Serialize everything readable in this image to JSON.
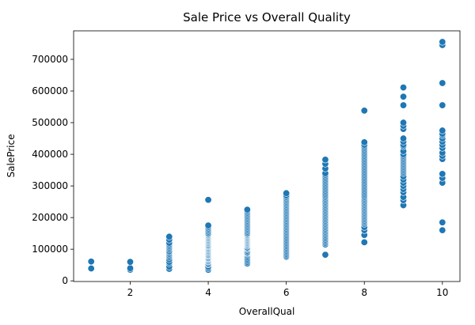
{
  "chart_data": {
    "type": "scatter",
    "title": "Sale Price vs Overall Quality",
    "xlabel": "OverallQual",
    "ylabel": "SalePrice",
    "xlim": [
      0.55,
      10.45
    ],
    "ylim": [
      -2000,
      790000
    ],
    "xticks": [
      2,
      4,
      6,
      8,
      10
    ],
    "yticks": [
      0,
      100000,
      200000,
      300000,
      400000,
      500000,
      600000,
      700000
    ],
    "grid": false,
    "marker_color": "#1f77b4",
    "marker_edge": "#ffffff",
    "points": [
      {
        "x": 1,
        "y": [
          39300,
          61000
        ]
      },
      {
        "x": 2,
        "y": [
          35311,
          40000,
          60000
        ]
      },
      {
        "x": 3,
        "y": [
          37900,
          45000,
          55000,
          60000,
          68000,
          75000,
          80000,
          85000,
          90000,
          94000,
          100000,
          105000,
          110000,
          115000,
          120000,
          130000,
          139600
        ]
      },
      {
        "x": 4,
        "y": [
          34900,
          40000,
          45000,
          52000,
          55000,
          60000,
          62000,
          65000,
          68000,
          70000,
          72000,
          75000,
          78000,
          80000,
          82000,
          85000,
          88000,
          90000,
          93000,
          95000,
          98000,
          100000,
          103000,
          105000,
          108000,
          110000,
          112000,
          115000,
          118000,
          120000,
          123000,
          125000,
          128000,
          130000,
          133000,
          135000,
          138000,
          140000,
          143000,
          145000,
          148000,
          150000,
          155000,
          160000,
          165000,
          170000,
          175000,
          256000
        ]
      },
      {
        "x": 5,
        "y": [
          55000,
          60000,
          65000,
          70000,
          75000,
          80000,
          85000,
          88000,
          90000,
          95000,
          100000,
          103000,
          105000,
          110000,
          113000,
          115000,
          118000,
          120000,
          123000,
          125000,
          128000,
          130000,
          133000,
          135000,
          138000,
          140000,
          143000,
          145000,
          148000,
          150000,
          155000,
          160000,
          165000,
          170000,
          175000,
          180000,
          185000,
          190000,
          195000,
          200000,
          205000,
          210000,
          215000,
          220000,
          225000
        ]
      },
      {
        "x": 6,
        "y": [
          76000,
          80000,
          85000,
          90000,
          95000,
          100000,
          105000,
          110000,
          115000,
          120000,
          125000,
          130000,
          135000,
          140000,
          145000,
          150000,
          155000,
          160000,
          165000,
          170000,
          175000,
          180000,
          185000,
          190000,
          195000,
          200000,
          205000,
          210000,
          215000,
          220000,
          225000,
          230000,
          235000,
          240000,
          245000,
          250000,
          255000,
          260000,
          265000,
          270000,
          277000
        ]
      },
      {
        "x": 7,
        "y": [
          82500,
          115000,
          120000,
          125000,
          130000,
          135000,
          140000,
          145000,
          150000,
          155000,
          160000,
          165000,
          170000,
          175000,
          180000,
          185000,
          190000,
          195000,
          200000,
          205000,
          210000,
          215000,
          220000,
          225000,
          230000,
          235000,
          240000,
          245000,
          250000,
          255000,
          260000,
          265000,
          270000,
          275000,
          280000,
          285000,
          290000,
          295000,
          300000,
          305000,
          310000,
          315000,
          320000,
          325000,
          330000,
          335000,
          340000,
          355000,
          370000,
          383000
        ]
      },
      {
        "x": 8,
        "y": [
          122000,
          145000,
          160000,
          170000,
          180000,
          185000,
          190000,
          195000,
          200000,
          205000,
          210000,
          215000,
          220000,
          225000,
          230000,
          235000,
          240000,
          245000,
          250000,
          255000,
          260000,
          265000,
          270000,
          275000,
          280000,
          285000,
          290000,
          295000,
          300000,
          305000,
          310000,
          315000,
          320000,
          325000,
          330000,
          335000,
          340000,
          345000,
          350000,
          355000,
          360000,
          365000,
          370000,
          375000,
          380000,
          385000,
          390000,
          395000,
          400000,
          405000,
          410000,
          415000,
          420000,
          425000,
          430000,
          438000,
          538000
        ]
      },
      {
        "x": 9,
        "y": [
          239000,
          255000,
          265000,
          280000,
          290000,
          300000,
          310000,
          320000,
          330000,
          340000,
          345000,
          350000,
          355000,
          360000,
          365000,
          370000,
          375000,
          380000,
          385000,
          390000,
          395000,
          400000,
          410000,
          425000,
          430000,
          440000,
          450000,
          480000,
          490000,
          500000,
          555000,
          582000,
          611000
        ]
      },
      {
        "x": 10,
        "y": [
          160000,
          184750,
          310000,
          325000,
          338000,
          385000,
          395000,
          405000,
          420000,
          430000,
          440000,
          450000,
          460000,
          465000,
          475000,
          555000,
          625000,
          745000,
          755000
        ]
      }
    ]
  }
}
